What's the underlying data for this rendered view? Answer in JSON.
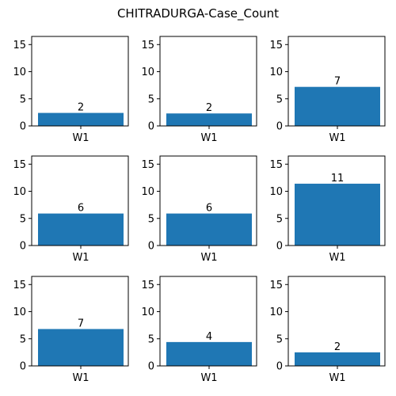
{
  "figure": {
    "title": "CHITRADURGA-Case_Count"
  },
  "chart_data": {
    "type": "bar",
    "layout": "3x3 grid of subplots",
    "title": "CHITRADURGA-Case_Count",
    "categories": [
      "W1"
    ],
    "ylim": [
      0,
      16.5
    ],
    "yticks": [
      0,
      5,
      10,
      15
    ],
    "bar_color": "#1f77b4",
    "show_data_labels": true,
    "subplots": [
      {
        "values": [
          2
        ],
        "bar_value": 2.4
      },
      {
        "values": [
          2
        ],
        "bar_value": 2.3
      },
      {
        "values": [
          7
        ],
        "bar_value": 7.2
      },
      {
        "values": [
          6
        ],
        "bar_value": 5.9
      },
      {
        "values": [
          6
        ],
        "bar_value": 5.9
      },
      {
        "values": [
          11
        ],
        "bar_value": 11.4
      },
      {
        "values": [
          7
        ],
        "bar_value": 6.8
      },
      {
        "values": [
          4
        ],
        "bar_value": 4.4
      },
      {
        "values": [
          2
        ],
        "bar_value": 2.5
      }
    ]
  }
}
